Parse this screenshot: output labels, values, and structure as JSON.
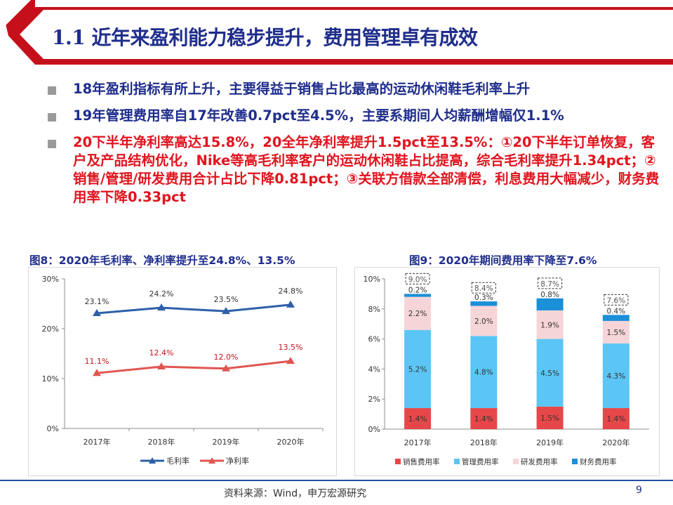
{
  "page": {
    "title": "1.1 近年来盈利能力稳步提升，费用管理卓有成效",
    "bullets": [
      {
        "text": "18年盈利指标有所上升，主要得益于销售占比最高的运动休闲鞋毛利率上升",
        "highlight": false
      },
      {
        "text": "19年管理费用率自17年改善0.7pct至4.5%，主要系期间人均薪酬增幅仅1.1%",
        "highlight": false
      },
      {
        "text": "20下半年净利率高达15.8%，20全年净利率提升1.5pct至13.5%：①20下半年订单恢复，客户及产品结构优化，Nike等高毛利率客户的运动休闲鞋占比提高，综合毛利率提升1.34pct；②销售/管理/研发费用合计占比下降0.81pct；③关联方借款全部清偿，利息费用大幅减少，财务费用率下降0.33pct",
        "highlight": true
      }
    ],
    "source": "资料来源：Wind，申万宏源研究",
    "page_number": "9",
    "colors": {
      "brand_red": "#c5101c",
      "navy": "#1f2d8c",
      "highlight_red": "#e0141e"
    }
  },
  "chart_data": [
    {
      "type": "line",
      "title": "图8：2020年毛利率、净利率提升至24.8%、13.5%",
      "categories": [
        "2017年",
        "2018年",
        "2019年",
        "2020年"
      ],
      "ylim": [
        0,
        30
      ],
      "yticks": [
        "0%",
        "10%",
        "20%",
        "30%"
      ],
      "grid": false,
      "legend": "bottom",
      "series": [
        {
          "name": "毛利率",
          "values": [
            23.1,
            24.2,
            23.5,
            24.8
          ],
          "labels": [
            "23.1%",
            "24.2%",
            "23.5%",
            "24.8%"
          ],
          "color": "#2e5fa8"
        },
        {
          "name": "净利率",
          "values": [
            11.1,
            12.4,
            12.0,
            13.5
          ],
          "labels": [
            "11.1%",
            "12.4%",
            "12.0%",
            "13.5%"
          ],
          "color": "#e05550"
        }
      ]
    },
    {
      "type": "bar",
      "stacked": true,
      "title": "图9：2020年期间费用率下降至7.6%",
      "categories": [
        "2017年",
        "2018年",
        "2019年",
        "2020年"
      ],
      "ylim": [
        0,
        10
      ],
      "yticks": [
        "0%",
        "2%",
        "4%",
        "6%",
        "8%",
        "10%"
      ],
      "grid": false,
      "legend": "bottom",
      "series": [
        {
          "name": "销售费用率",
          "values": [
            1.4,
            1.4,
            1.5,
            1.4
          ],
          "labels": [
            "1.4%",
            "1.4%",
            "1.5%",
            "1.4%"
          ],
          "color": "#e8474a"
        },
        {
          "name": "管理费用率",
          "values": [
            5.2,
            4.8,
            4.5,
            4.3
          ],
          "labels": [
            "5.2%",
            "4.8%",
            "4.5%",
            "4.3%"
          ],
          "color": "#5bc6f5"
        },
        {
          "name": "研发费用率",
          "values": [
            2.2,
            2.0,
            1.9,
            1.5
          ],
          "labels": [
            "2.2%",
            "2.0%",
            "1.9%",
            "1.5%"
          ],
          "color": "#f6d5d8"
        },
        {
          "name": "财务费用率",
          "values": [
            0.2,
            0.3,
            0.8,
            0.4
          ],
          "labels": [
            "0.2%",
            "0.3%",
            "0.8%",
            "0.4%"
          ],
          "color": "#1b8fd8"
        }
      ],
      "totals": [
        9.0,
        8.4,
        8.7,
        7.6
      ],
      "total_labels": [
        "9.0%",
        "8.4%",
        "8.7%",
        "7.6%"
      ]
    }
  ]
}
